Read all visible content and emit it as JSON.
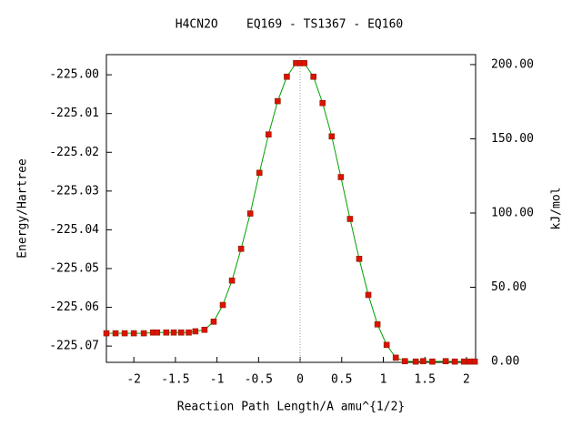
{
  "chart_data": {
    "type": "line",
    "title": "H4CN2O    EQ169 - TS1367 - EQ160",
    "xlabel": "Reaction Path Length/A amu^{1/2}",
    "ylabel": "Energy/Hartree",
    "y2label": "kJ/mol",
    "xlim": [
      -2.33,
      2.11
    ],
    "ylim": [
      -225.0742,
      -224.9948
    ],
    "y2lim": [
      -0.6,
      206.7
    ],
    "xticks": [
      -2,
      -1.5,
      -1,
      -0.5,
      0,
      0.5,
      1,
      1.5,
      2
    ],
    "yticks": [
      {
        "value": -225.0,
        "label": "-225.00"
      },
      {
        "value": -225.01,
        "label": "-225.01"
      },
      {
        "value": -225.02,
        "label": "-225.02"
      },
      {
        "value": -225.03,
        "label": "-225.03"
      },
      {
        "value": -225.04,
        "label": "-225.04"
      },
      {
        "value": -225.05,
        "label": "-225.05"
      },
      {
        "value": -225.06,
        "label": "-225.06"
      },
      {
        "value": -225.07,
        "label": "-225.07"
      }
    ],
    "y2ticks": [
      {
        "value": 0,
        "label": "0.00"
      },
      {
        "value": 50,
        "label": "50.00"
      },
      {
        "value": 100,
        "label": "100.00"
      },
      {
        "value": 150,
        "label": "150.00"
      },
      {
        "value": 200,
        "label": "200.00"
      }
    ],
    "reference_line_x": 0,
    "series": [
      {
        "color": "#00a000",
        "marker_color": "#dd1100",
        "x": [
          -2.33,
          -2.22,
          -2.11,
          -2.0,
          -1.88,
          -1.77,
          -1.72,
          -1.61,
          -1.52,
          -1.43,
          -1.34,
          -1.26,
          -1.15,
          -1.04,
          -0.93,
          -0.82,
          -0.71,
          -0.6,
          -0.49,
          -0.38,
          -0.27,
          -0.16,
          -0.05,
          0.0,
          0.05,
          0.16,
          0.27,
          0.38,
          0.49,
          0.6,
          0.71,
          0.82,
          0.93,
          1.04,
          1.15,
          1.26,
          1.39,
          1.48,
          1.59,
          1.75,
          1.86,
          1.97,
          2.04,
          2.1
        ],
        "values": [
          -225.0667,
          -225.0667,
          -225.0667,
          -225.0667,
          -225.0667,
          -225.0665,
          -225.0665,
          -225.0665,
          -225.0665,
          -225.0665,
          -225.0665,
          -225.0662,
          -225.0658,
          -225.0637,
          -225.0594,
          -225.0531,
          -225.0449,
          -225.0358,
          -225.0253,
          -225.0154,
          -225.0068,
          -225.0005,
          -224.997,
          -224.997,
          -224.997,
          -225.0005,
          -225.0073,
          -225.0159,
          -225.0264,
          -225.0372,
          -225.0475,
          -225.0568,
          -225.0644,
          -225.0697,
          -225.073,
          -225.0739,
          -225.074,
          -225.0739,
          -225.074,
          -225.0739,
          -225.074,
          -225.074,
          -225.074,
          -225.074
        ]
      }
    ]
  }
}
